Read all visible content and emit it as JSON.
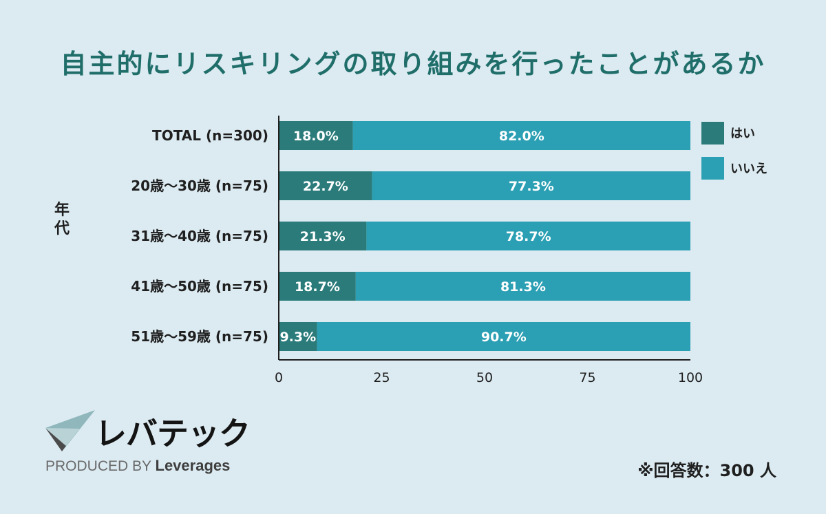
{
  "title": "自主的にリスキリングの取り組みを行ったことがあるか",
  "note": "※回答数：300 人",
  "logo": {
    "name": "レバテック",
    "produced_by": "PRODUCED BY",
    "brand": "Leverages"
  },
  "chart_data": {
    "type": "bar",
    "orientation": "horizontal",
    "stacked": true,
    "title": "自主的にリスキリングの取り組みを行ったことがあるか",
    "ylabel": "年代",
    "xlabel": "",
    "xlim": [
      0,
      100
    ],
    "x_ticks": [
      0,
      25,
      50,
      75,
      100
    ],
    "categories": [
      "TOTAL (n=300)",
      "20歳～30歳 (n=75)",
      "31歳～40歳 (n=75)",
      "41歳～50歳 (n=75)",
      "51歳～59歳 (n=75)"
    ],
    "series": [
      {
        "name": "はい",
        "color": "#2a7b7a",
        "values": [
          18.0,
          22.7,
          21.3,
          18.7,
          9.3
        ],
        "labels": [
          "18.0%",
          "22.7%",
          "21.3%",
          "18.7%",
          "9.3%"
        ]
      },
      {
        "name": "いいえ",
        "color": "#2b9fb3",
        "values": [
          82.0,
          77.3,
          78.7,
          81.3,
          90.7
        ],
        "labels": [
          "82.0%",
          "77.3%",
          "78.7%",
          "81.3%",
          "90.7%"
        ]
      }
    ],
    "legend_position": "right",
    "grid": false
  }
}
